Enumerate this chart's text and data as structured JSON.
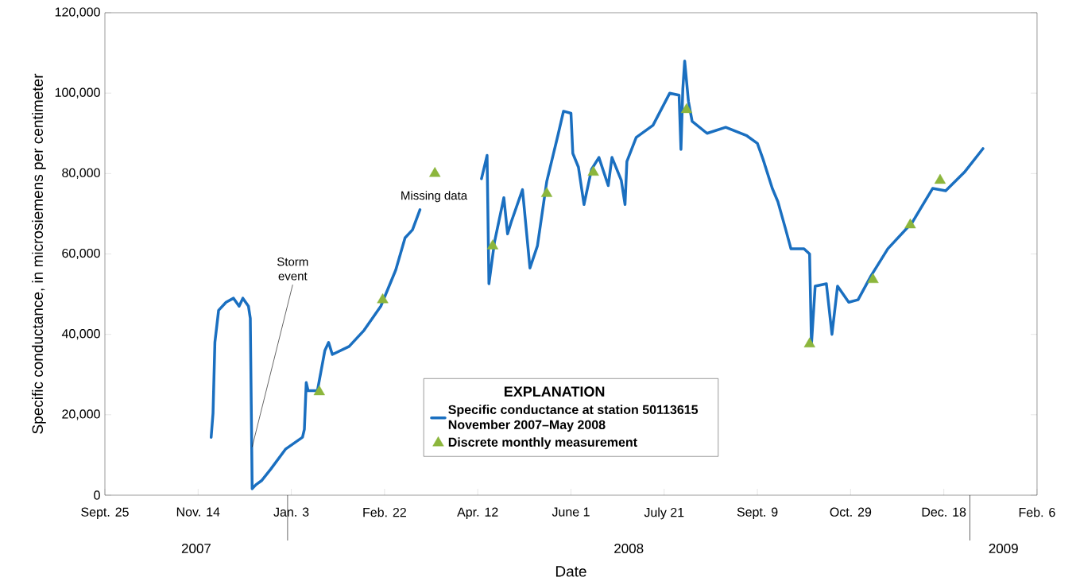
{
  "chart_data": {
    "type": "line",
    "xlabel": "Date",
    "ylabel": "Specific conductance, in microsiemens per centimeter",
    "legend_title": "EXPLANATION",
    "xlim": [
      "2007-09-25",
      "2009-02-06"
    ],
    "xticks": [
      {
        "value": "2007-09-25",
        "label": "Sept. 25"
      },
      {
        "value": "2007-11-14",
        "label": "Nov. 14"
      },
      {
        "value": "2008-01-03",
        "label": "Jan. 3"
      },
      {
        "value": "2008-02-22",
        "label": "Feb. 22"
      },
      {
        "value": "2008-04-12",
        "label": "Apr. 12"
      },
      {
        "value": "2008-06-01",
        "label": "June 1"
      },
      {
        "value": "2008-07-21",
        "label": "July 21"
      },
      {
        "value": "2008-09-09",
        "label": "Sept. 9"
      },
      {
        "value": "2008-10-29",
        "label": "Oct. 29"
      },
      {
        "value": "2008-12-18",
        "label": "Dec. 18"
      },
      {
        "value": "2009-02-06",
        "label": "Feb. 6"
      }
    ],
    "ylim": [
      0,
      120000
    ],
    "yticks": [
      {
        "value": 0,
        "label": "0"
      },
      {
        "value": 20000,
        "label": "20,000"
      },
      {
        "value": 40000,
        "label": "40,000"
      },
      {
        "value": 60000,
        "label": "60,000"
      },
      {
        "value": 80000,
        "label": "80,000"
      },
      {
        "value": 100000,
        "label": "100,000"
      },
      {
        "value": 120000,
        "label": "120,000"
      }
    ],
    "legend": "bottom",
    "series": [
      {
        "name": "Specific conductance at station 50113615 November 2007–May 2008",
        "color": "#1a6fc0",
        "type": "line",
        "line_style": "solid",
        "x": [
          "2007-11-21",
          "2007-11-22",
          "2007-11-23",
          "2007-11-25",
          "2007-11-29",
          "2007-12-03",
          "2007-12-06",
          "2007-12-08",
          "2007-12-11",
          "2007-12-12",
          "2007-12-13",
          "2007-12-15",
          "2007-12-18",
          "2007-12-23",
          "2007-12-31",
          "2008-01-09",
          "2008-01-10",
          "2008-01-11",
          "2008-01-12",
          "2008-01-17",
          "2008-01-21",
          "2008-01-23",
          "2008-01-25",
          "2008-02-03",
          "2008-02-11",
          "2008-02-20",
          "2008-02-28",
          "2008-03-04",
          "2008-03-08",
          "2008-03-12",
          "2008-03-31",
          "2008-04-14",
          "2008-04-17",
          "2008-04-18",
          "2008-04-21",
          "2008-04-26",
          "2008-04-28",
          "2008-04-30",
          "2008-05-06",
          "2008-05-10",
          "2008-05-14",
          "2008-05-19",
          "2008-05-25",
          "2008-05-28",
          "2008-06-01",
          "2008-06-02",
          "2008-06-05",
          "2008-06-08",
          "2008-06-12",
          "2008-06-16",
          "2008-06-21",
          "2008-06-23",
          "2008-06-28",
          "2008-06-30",
          "2008-07-01",
          "2008-07-06",
          "2008-07-15",
          "2008-07-24",
          "2008-07-29",
          "2008-07-30",
          "2008-07-31",
          "2008-08-01",
          "2008-08-03",
          "2008-08-05",
          "2008-08-13",
          "2008-08-23",
          "2008-09-03",
          "2008-09-09",
          "2008-09-12",
          "2008-09-17",
          "2008-09-20",
          "2008-09-24",
          "2008-09-27",
          "2008-10-04",
          "2008-10-07",
          "2008-10-08",
          "2008-10-10",
          "2008-10-16",
          "2008-10-19",
          "2008-10-22",
          "2008-10-28",
          "2008-11-02",
          "2008-11-09",
          "2008-11-18",
          "2008-12-01",
          "2008-12-12",
          "2008-12-19",
          "2008-12-29",
          "2009-01-08"
        ],
        "values": [
          14400,
          20400,
          38000,
          46000,
          48000,
          49000,
          47000,
          49000,
          47000,
          44000,
          1600,
          2600,
          3600,
          6500,
          11500,
          14400,
          16400,
          28000,
          26000,
          26000,
          36000,
          38000,
          35000,
          37000,
          41000,
          47000,
          56000,
          64000,
          66000,
          71000,
          null,
          78700,
          84500,
          52600,
          63000,
          74000,
          65000,
          68000,
          76000,
          56500,
          62000,
          78000,
          89500,
          95500,
          95000,
          85000,
          81600,
          72300,
          81000,
          84000,
          77000,
          84000,
          78300,
          72300,
          83000,
          89000,
          92000,
          100000,
          99500,
          86000,
          101000,
          108000,
          98000,
          93000,
          90000,
          91500,
          89500,
          87500,
          83600,
          76300,
          73000,
          66400,
          61300,
          61300,
          60000,
          37500,
          52000,
          52600,
          40000,
          52000,
          48000,
          48600,
          54600,
          61300,
          67800,
          76300,
          75700,
          80300,
          86200
        ]
      },
      {
        "name": "Discrete monthly measurement",
        "color": "#8cb63c",
        "type": "scatter",
        "marker": "triangle",
        "x": [
          "2008-01-18",
          "2008-02-21",
          "2008-03-20",
          "2008-04-20",
          "2008-05-19",
          "2008-06-13",
          "2008-08-02",
          "2008-10-07",
          "2008-11-10",
          "2008-11-30",
          "2008-12-16"
        ],
        "values": [
          25700,
          48600,
          80000,
          62000,
          75000,
          80300,
          95900,
          37600,
          53600,
          67200,
          78300
        ]
      }
    ],
    "annotations": [
      "2007",
      "2008",
      "2009",
      {
        "text": "Storm event",
        "x": "2007-12-13",
        "y": 12000
      },
      "Missing data"
    ]
  }
}
